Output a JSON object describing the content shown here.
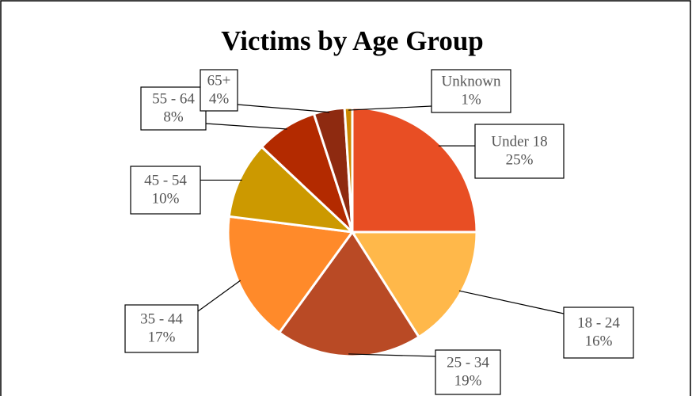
{
  "chart_data": {
    "type": "pie",
    "title": "Victims by Age Group",
    "categories": [
      "Under 18",
      "18 - 24",
      "25 - 34",
      "35 - 44",
      "45 - 54",
      "55 - 64",
      "65+",
      "Unknown"
    ],
    "values": [
      25,
      16,
      19,
      17,
      10,
      8,
      4,
      1
    ],
    "value_labels": [
      "25%",
      "16%",
      "19%",
      "17%",
      "10%",
      "8%",
      "4%",
      "1%"
    ],
    "colors": [
      "#e84e24",
      "#ffb84a",
      "#b94a25",
      "#ff8a2a",
      "#cc9900",
      "#b32a00",
      "#8e2a10",
      "#cc8800"
    ]
  }
}
